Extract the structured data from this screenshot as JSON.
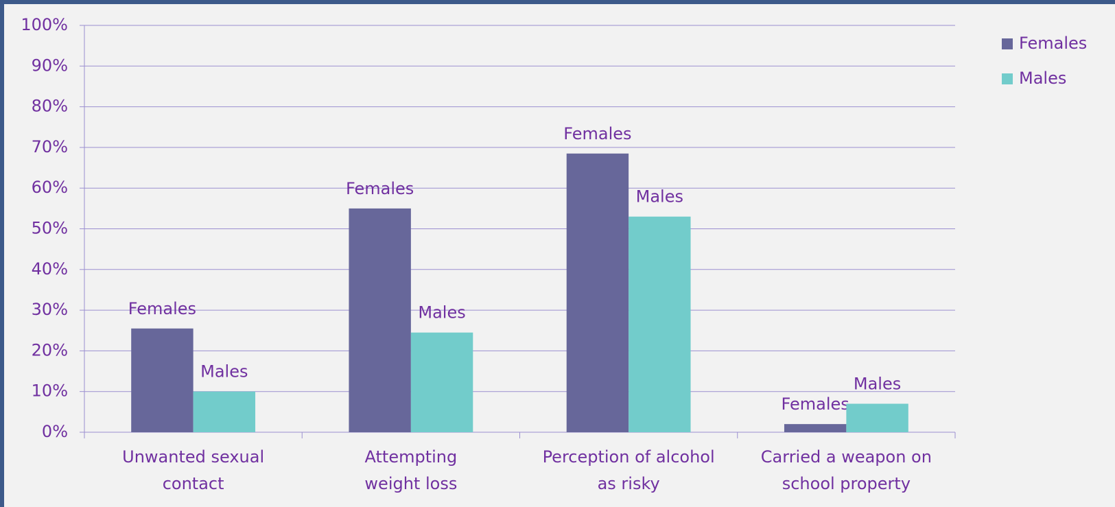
{
  "chart_data": {
    "type": "bar",
    "categories": [
      "Unwanted sexual\ncontact",
      "Attempting\nweight loss",
      "Perception of alcohol\nas risky",
      "Carried a weapon on\nschool property"
    ],
    "series": [
      {
        "name": "Females",
        "color": "#67679a",
        "values": [
          25.5,
          55,
          68.5,
          2
        ]
      },
      {
        "name": "Males",
        "color": "#72cccb",
        "values": [
          10,
          24.5,
          53,
          7
        ]
      }
    ],
    "ylim": [
      0,
      100
    ],
    "yticks": [
      {
        "value": 0,
        "label": "0%"
      },
      {
        "value": 10,
        "label": "10%"
      },
      {
        "value": 20,
        "label": "20%"
      },
      {
        "value": 30,
        "label": "30%"
      },
      {
        "value": 40,
        "label": "40%"
      },
      {
        "value": 50,
        "label": "50%"
      },
      {
        "value": 60,
        "label": "60%"
      },
      {
        "value": 70,
        "label": "70%"
      },
      {
        "value": 80,
        "label": "80%"
      },
      {
        "value": 90,
        "label": "90%"
      },
      {
        "value": 100,
        "label": "100%"
      }
    ],
    "grid": true,
    "legend": "top-right"
  }
}
